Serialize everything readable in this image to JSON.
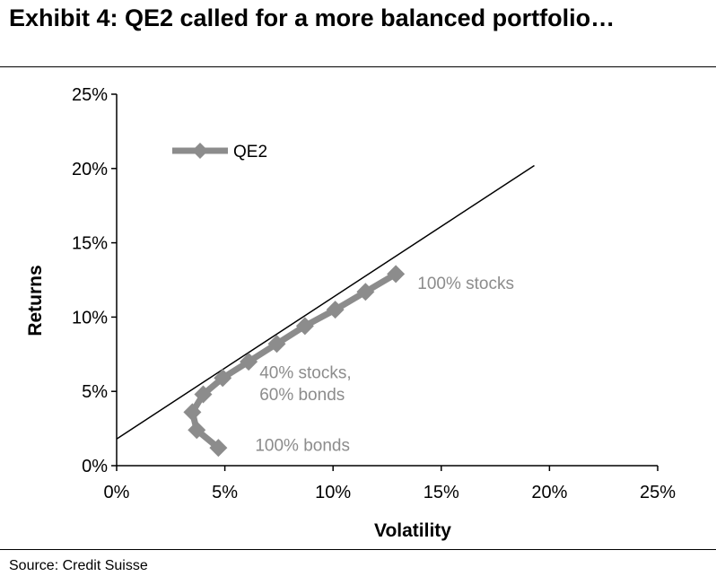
{
  "header": {
    "title": "Exhibit 4: QE2 called for a more balanced portfolio…"
  },
  "footer": {
    "source": "Source: Credit Suisse"
  },
  "chart_data": {
    "type": "line",
    "title": "",
    "xlabel": "Volatility",
    "ylabel": "Returns",
    "xlim": [
      0,
      25
    ],
    "ylim": [
      0,
      25
    ],
    "x_ticks": [
      "0%",
      "5%",
      "10%",
      "15%",
      "20%",
      "25%"
    ],
    "y_ticks": [
      "0%",
      "5%",
      "10%",
      "15%",
      "20%",
      "25%"
    ],
    "grid": false,
    "legend": "top-left",
    "series": [
      {
        "name": "QE2",
        "color": "#8c8c8c",
        "marker": "diamond",
        "x": [
          4.7,
          3.7,
          3.5,
          4.0,
          4.9,
          6.1,
          7.4,
          8.7,
          10.1,
          11.5,
          12.9
        ],
        "y": [
          1.2,
          2.4,
          3.6,
          4.8,
          5.9,
          7.0,
          8.2,
          9.4,
          10.5,
          11.7,
          12.9
        ]
      }
    ],
    "reference_line": {
      "color": "#000000",
      "x": [
        0,
        19.3
      ],
      "y": [
        1.8,
        20.2
      ]
    },
    "annotations": [
      {
        "text": "100% stocks",
        "x": 13.9,
        "y": 11.9
      },
      {
        "text": "40% stocks,",
        "x": 6.6,
        "y": 5.9
      },
      {
        "text": "60% bonds",
        "x": 6.6,
        "y": 4.4
      },
      {
        "text": "100% bonds",
        "x": 6.4,
        "y": 1.0
      }
    ]
  }
}
